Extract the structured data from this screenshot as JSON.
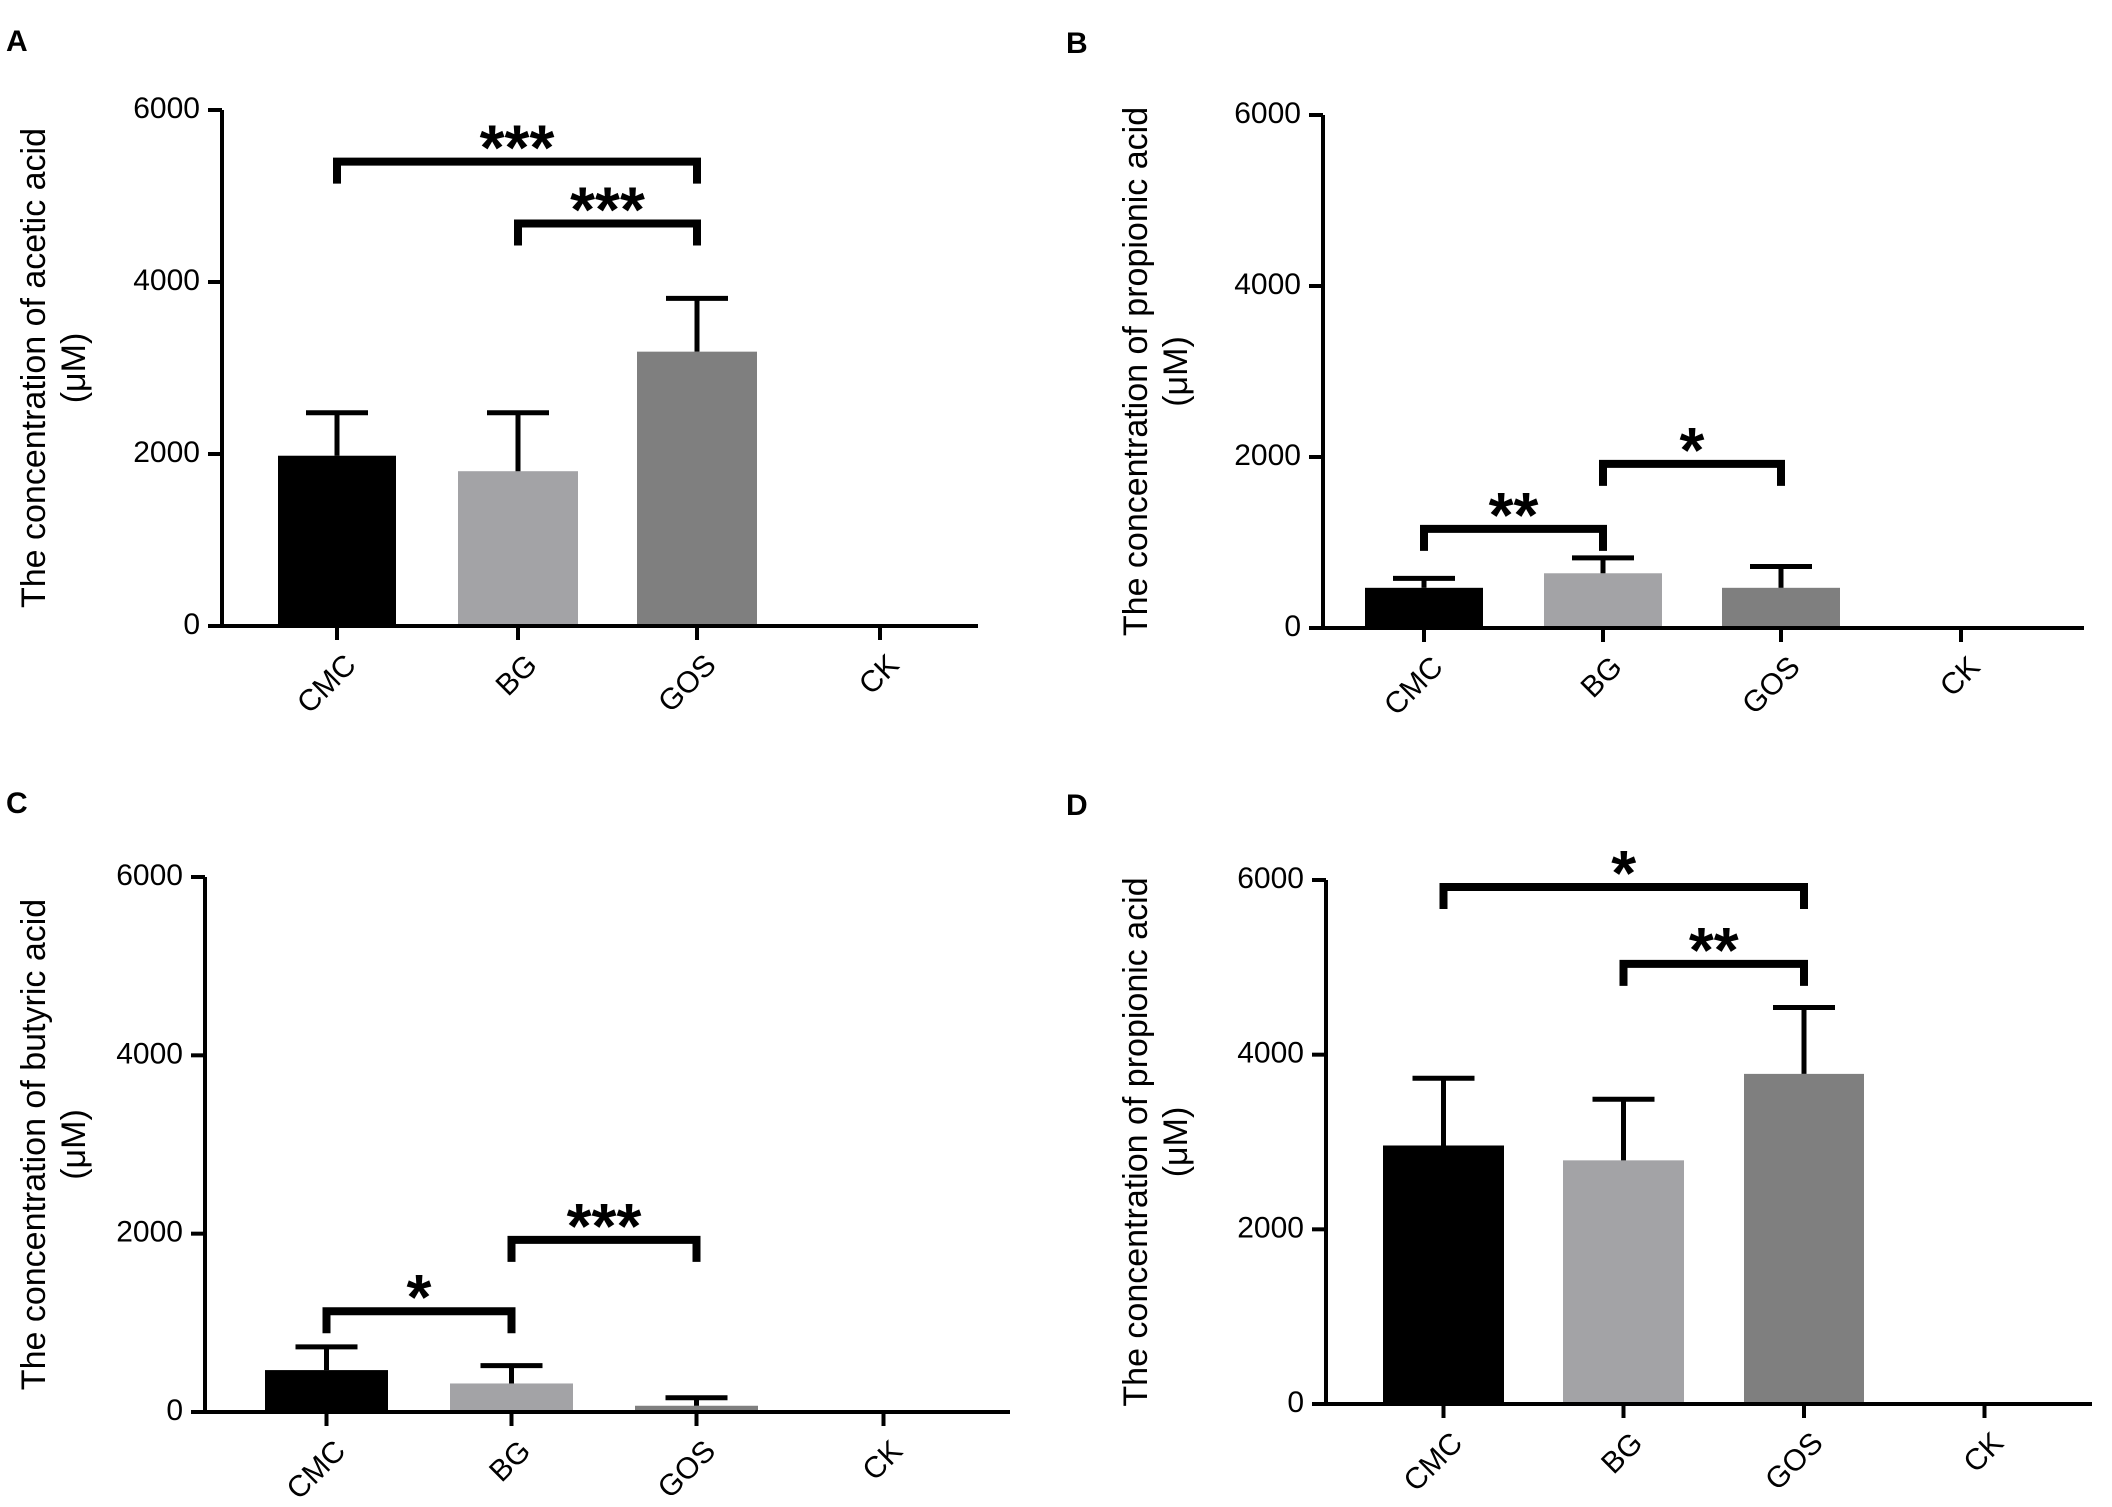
{
  "colors": {
    "CMC": "#000000",
    "BG": "#a3a3a6",
    "GOS": "#7f7f7f",
    "CK": "#000000",
    "axis": "#000000"
  },
  "chart_data": [
    {
      "panel": "A",
      "type": "bar",
      "ylabel_line1": "The concentration of acetic acid",
      "ylabel_line2": "(μM)",
      "categories": [
        "CMC",
        "BG",
        "GOS",
        "CK"
      ],
      "values": [
        1980,
        1800,
        3190,
        20
      ],
      "errors": [
        500,
        680,
        620,
        0
      ],
      "ylim": [
        0,
        6000
      ],
      "yticks": [
        0,
        2000,
        4000,
        6000
      ],
      "ytick_labels": [
        "0",
        "2000",
        "4000",
        "6000"
      ],
      "significance": [
        {
          "from": 0,
          "to": 2,
          "label": "***",
          "y": 5400
        },
        {
          "from": 1,
          "to": 2,
          "label": "***",
          "y": 4680
        }
      ]
    },
    {
      "panel": "B",
      "type": "bar",
      "ylabel_line1": "The concentration of propionic acid",
      "ylabel_line2": "(μM)",
      "categories": [
        "CMC",
        "BG",
        "GOS",
        "CK"
      ],
      "values": [
        470,
        640,
        470,
        0
      ],
      "errors": [
        110,
        180,
        250,
        0
      ],
      "ylim": [
        0,
        6000
      ],
      "yticks": [
        0,
        2000,
        4000,
        6000
      ],
      "ytick_labels": [
        "0",
        "2000",
        "4000",
        "6000"
      ],
      "significance": [
        {
          "from": 0,
          "to": 1,
          "label": "**",
          "y": 1160
        },
        {
          "from": 1,
          "to": 2,
          "label": "*",
          "y": 1920
        }
      ]
    },
    {
      "panel": "C",
      "type": "bar",
      "ylabel_line1": "The concentration of butyric acid",
      "ylabel_line2": "(μM)",
      "categories": [
        "CMC",
        "BG",
        "GOS",
        "CK"
      ],
      "values": [
        470,
        320,
        70,
        0
      ],
      "errors": [
        260,
        200,
        90,
        0
      ],
      "ylim": [
        0,
        6000
      ],
      "yticks": [
        0,
        2000,
        4000,
        6000
      ],
      "ytick_labels": [
        "0",
        "2000",
        "4000",
        "6000"
      ],
      "significance": [
        {
          "from": 0,
          "to": 1,
          "label": "*",
          "y": 1130
        },
        {
          "from": 1,
          "to": 2,
          "label": "***",
          "y": 1930
        }
      ]
    },
    {
      "panel": "D",
      "type": "bar",
      "ylabel_line1": "The concentration of propionic acid",
      "ylabel_line2": "(μM)",
      "categories": [
        "CMC",
        "BG",
        "GOS",
        "CK"
      ],
      "values": [
        2960,
        2790,
        3780,
        0
      ],
      "errors": [
        770,
        700,
        760,
        0
      ],
      "ylim": [
        0,
        6000
      ],
      "yticks": [
        0,
        2000,
        4000,
        6000
      ],
      "ytick_labels": [
        "0",
        "2000",
        "4000",
        "6000"
      ],
      "significance": [
        {
          "from": 0,
          "to": 2,
          "label": "*",
          "y": 5920
        },
        {
          "from": 1,
          "to": 2,
          "label": "**",
          "y": 5040
        }
      ]
    }
  ]
}
